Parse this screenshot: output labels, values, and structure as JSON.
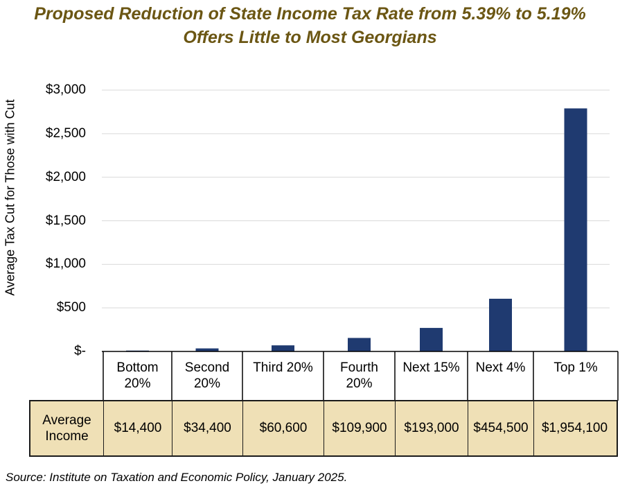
{
  "title": {
    "line1": "Proposed Reduction of State Income Tax Rate from 5.39% to 5.19%",
    "line2": "Offers Little to Most Georgians"
  },
  "chart_data": {
    "type": "bar",
    "ylabel": "Average Tax Cut for Those with Cut",
    "ylim": [
      0,
      3000
    ],
    "y_ticks": [
      "$-",
      "$500",
      "$1,000",
      "$1,500",
      "$2,000",
      "$2,500",
      "$3,000"
    ],
    "y_tick_values": [
      0,
      500,
      1000,
      1500,
      2000,
      2500,
      3000
    ],
    "grid": true,
    "categories": [
      "Bottom\n20%",
      "Second\n20%",
      "Third 20%",
      "Fourth\n20%",
      "Next 15%",
      "Next 4%",
      "Top 1%"
    ],
    "values": [
      10,
      35,
      70,
      155,
      270,
      605,
      2790
    ],
    "bar_color": "#1f3a70"
  },
  "income_row": {
    "label": "Average\nIncome",
    "values": [
      "$14,400",
      "$34,400",
      "$60,600",
      "$109,900",
      "$193,000",
      "$454,500",
      "$1,954,100"
    ]
  },
  "source": "Source: Institute on Taxation and Economic Policy, January 2025."
}
